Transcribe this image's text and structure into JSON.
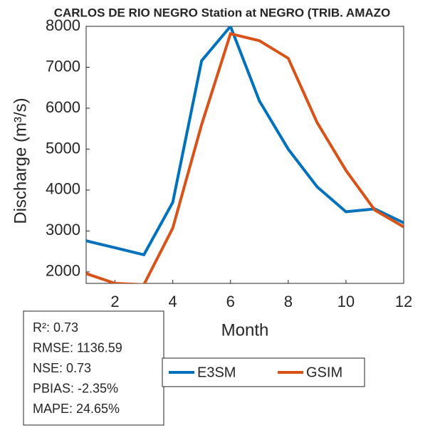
{
  "chart_data": {
    "type": "line",
    "title": "CARLOS DE RIO NEGRO  Station at  NEGRO (TRIB. AMAZO",
    "xlabel": "Month",
    "ylabel": "Discharge (m³/s)",
    "x": [
      1,
      2,
      3,
      4,
      5,
      6,
      7,
      8,
      9,
      10,
      11,
      12
    ],
    "series": [
      {
        "name": "E3SM",
        "color": "#0072BD",
        "values": [
          2760,
          2590,
          2420,
          3700,
          7160,
          8000,
          6180,
          5000,
          4080,
          3470,
          3540,
          3200
        ]
      },
      {
        "name": "GSIM",
        "color": "#D95319",
        "values": [
          1960,
          1720,
          1690,
          3070,
          5600,
          7820,
          7650,
          7220,
          5650,
          4480,
          3510,
          3100
        ]
      }
    ],
    "xlim": [
      1,
      12
    ],
    "xticks": [
      2,
      4,
      6,
      8,
      10,
      12
    ],
    "ylim": [
      1720,
      8000
    ],
    "yticks": [
      2000,
      3000,
      4000,
      5000,
      6000,
      7000,
      8000
    ],
    "annotations": [
      "R²: 0.73",
      "RMSE: 1136.59",
      "NSE: 0.73",
      "PBIAS: -2.35%",
      "MAPE: 24.65%"
    ]
  }
}
